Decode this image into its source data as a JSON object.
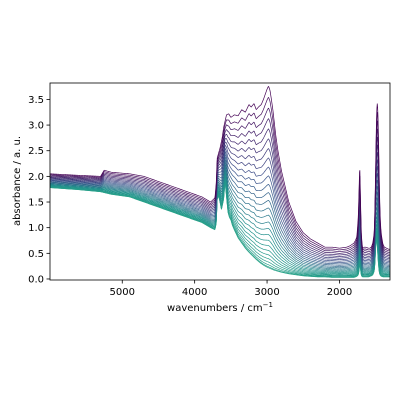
{
  "chart_data": {
    "type": "line",
    "title": "",
    "xlabel": "wavenumbers / cm",
    "xlabel_superscript": "−1",
    "ylabel": "absorbance / a. u.",
    "xlim": [
      5998,
      1302
    ],
    "ylim": [
      -0.02,
      3.82
    ],
    "x_inverted": true,
    "grid": false,
    "legend": "none",
    "series_count": 27,
    "colormap": [
      "#440154",
      "#3b528b",
      "#21918c",
      "#2ca58a"
    ],
    "x_ticks": [
      {
        "value": 5000,
        "label": "5000"
      },
      {
        "value": 4000,
        "label": "4000"
      },
      {
        "value": 3000,
        "label": "3000"
      },
      {
        "value": 2000,
        "label": "2000"
      }
    ],
    "y_ticks": [
      {
        "value": 0.0,
        "label": "0.0"
      },
      {
        "value": 0.5,
        "label": "0.5"
      },
      {
        "value": 1.0,
        "label": "1.0"
      },
      {
        "value": 1.5,
        "label": "1.5"
      },
      {
        "value": 2.0,
        "label": "2.0"
      },
      {
        "value": 2.5,
        "label": "2.5"
      },
      {
        "value": 3.0,
        "label": "3.0"
      },
      {
        "value": 3.5,
        "label": "3.5"
      }
    ],
    "first_spectrum": {
      "x": [
        5998,
        5600,
        5300,
        5250,
        5150,
        4900,
        4700,
        4500,
        4300,
        4100,
        3900,
        3780,
        3720,
        3700,
        3690,
        3650,
        3620,
        3600,
        3560,
        3530,
        3500,
        3450,
        3400,
        3350,
        3300,
        3250,
        3220,
        3180,
        3150,
        3120,
        3080,
        3050,
        3020,
        3000,
        2980,
        2960,
        2940,
        2920,
        2900,
        2880,
        2850,
        2800,
        2700,
        2600,
        2500,
        2400,
        2300,
        2200,
        2100,
        2000,
        1900,
        1850,
        1800,
        1780,
        1760,
        1740,
        1730,
        1720,
        1710,
        1700,
        1690,
        1680,
        1670,
        1660,
        1640,
        1600,
        1580,
        1560,
        1540,
        1520,
        1510,
        1500,
        1490,
        1480,
        1470,
        1460,
        1450,
        1440,
        1430,
        1420,
        1400,
        1380,
        1350,
        1320,
        1302
      ],
      "y": [
        2.05,
        2.02,
        2.0,
        2.12,
        2.08,
        2.05,
        2.0,
        1.9,
        1.8,
        1.7,
        1.6,
        1.5,
        1.58,
        1.9,
        2.35,
        2.55,
        2.75,
        2.95,
        3.2,
        3.22,
        3.15,
        3.2,
        3.18,
        3.3,
        3.25,
        3.4,
        3.35,
        3.42,
        3.3,
        3.35,
        3.4,
        3.5,
        3.62,
        3.7,
        3.76,
        3.68,
        3.5,
        3.3,
        3.05,
        2.8,
        2.5,
        2.1,
        1.5,
        1.12,
        0.9,
        0.78,
        0.7,
        0.62,
        0.62,
        0.6,
        0.62,
        0.65,
        0.7,
        0.75,
        0.82,
        1.2,
        1.7,
        2.25,
        1.6,
        0.95,
        0.72,
        0.6,
        0.6,
        0.62,
        0.62,
        0.6,
        0.6,
        0.62,
        0.7,
        0.9,
        1.4,
        2.2,
        3.05,
        3.45,
        3.3,
        2.7,
        1.9,
        1.3,
        1.0,
        0.85,
        0.68,
        0.62,
        0.6,
        0.58,
        0.58
      ]
    },
    "last_spectrum": {
      "x": [
        5998,
        5600,
        5300,
        5150,
        4900,
        4700,
        4500,
        4300,
        4100,
        3900,
        3780,
        3720,
        3700,
        3690,
        3670,
        3650,
        3630,
        3600,
        3580,
        3560,
        3540,
        3520,
        3500,
        3480,
        3460,
        3440,
        3420,
        3400,
        3350,
        3300,
        3250,
        3200,
        3150,
        3100,
        3050,
        3000,
        2950,
        2900,
        2800,
        2700,
        2600,
        2500,
        2400,
        2300,
        2200,
        2100,
        2000,
        1900,
        1850,
        1800,
        1780,
        1760,
        1740,
        1730,
        1720,
        1710,
        1700,
        1690,
        1680,
        1670,
        1660,
        1640,
        1600,
        1580,
        1560,
        1540,
        1520,
        1510,
        1500,
        1490,
        1480,
        1470,
        1460,
        1450,
        1440,
        1430,
        1420,
        1400,
        1380,
        1350,
        1320,
        1302
      ],
      "y": [
        1.78,
        1.74,
        1.7,
        1.65,
        1.6,
        1.5,
        1.4,
        1.3,
        1.2,
        1.1,
        1.0,
        0.96,
        1.1,
        1.55,
        1.62,
        1.5,
        1.35,
        1.55,
        1.9,
        1.6,
        1.3,
        1.2,
        1.15,
        1.05,
        0.98,
        0.92,
        0.86,
        0.8,
        0.7,
        0.6,
        0.52,
        0.45,
        0.38,
        0.32,
        0.27,
        0.23,
        0.2,
        0.17,
        0.13,
        0.1,
        0.08,
        0.06,
        0.05,
        0.04,
        0.04,
        0.03,
        0.03,
        0.03,
        0.03,
        0.03,
        0.04,
        0.05,
        0.08,
        0.15,
        0.3,
        0.2,
        0.08,
        0.05,
        0.04,
        0.04,
        0.04,
        0.04,
        0.04,
        0.05,
        0.06,
        0.08,
        0.15,
        0.3,
        0.6,
        0.8,
        0.7,
        0.45,
        0.25,
        0.12,
        0.08,
        0.06,
        0.05,
        0.04,
        0.04,
        0.04,
        0.04,
        0.04
      ]
    }
  }
}
